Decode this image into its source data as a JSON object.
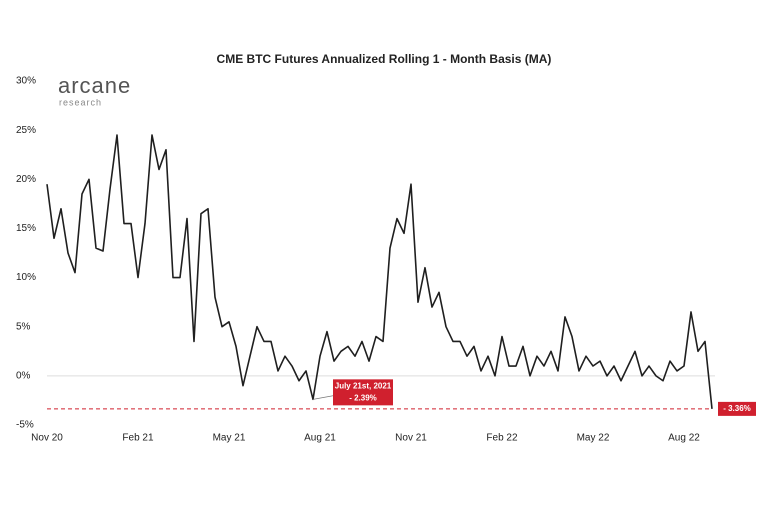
{
  "chart_data": {
    "type": "line",
    "title": "CME BTC Futures Annualized Rolling 1 - Month Basis (MA)",
    "logo": "arcane",
    "logo_subtitle": "research",
    "annotation": "July 21st, 2021",
    "categories": [
      "Nov 20",
      null,
      null,
      null,
      null,
      null,
      null,
      null,
      null,
      null,
      null,
      null,
      null,
      "Feb 21",
      null,
      null,
      null,
      null,
      null,
      null,
      null,
      null,
      null,
      null,
      null,
      null,
      "May 21",
      null,
      null,
      null,
      null,
      null,
      null,
      null,
      null,
      null,
      null,
      null,
      null,
      "Aug 21",
      null,
      null,
      null,
      null,
      null,
      null,
      null,
      null,
      null,
      null,
      null,
      null,
      "Nov 21",
      null,
      null,
      null,
      null,
      null,
      null,
      null,
      null,
      null,
      null,
      null,
      null,
      "Feb 22",
      null,
      null,
      null,
      null,
      null,
      null,
      null,
      null,
      null,
      null,
      null,
      null,
      "May 22",
      null,
      null,
      null,
      null,
      null,
      null,
      null,
      null,
      null,
      null,
      null,
      null,
      "Aug 22",
      null,
      null,
      null,
      null
    ],
    "series": [
      {
        "name": "Basis",
        "color": "#1f1f1f",
        "values": [
          19.5,
          14,
          17,
          12.5,
          10.5,
          18.5,
          20,
          13,
          12.7,
          19,
          24.5,
          15.5,
          15.5,
          10,
          15.5,
          24.5,
          21,
          23,
          10,
          10,
          16,
          3.5,
          16.5,
          17,
          8,
          5,
          5.5,
          3,
          -1,
          2,
          5,
          3.5,
          3.5,
          0.5,
          2,
          1,
          -0.5,
          0.5,
          -2.39,
          2,
          4.5,
          1.5,
          2.5,
          3,
          2,
          3.5,
          1.5,
          4,
          3.5,
          13,
          16,
          14.5,
          19.5,
          7.5,
          11,
          7,
          8.5,
          5,
          3.5,
          3.5,
          2,
          3,
          0.5,
          2,
          0,
          4,
          1,
          1,
          3,
          0,
          2,
          1,
          2.5,
          0.5,
          6,
          4,
          0.5,
          2,
          1,
          1.5,
          0,
          1,
          -0.5,
          1,
          2.5,
          0,
          1,
          0,
          -0.5,
          1.5,
          0.5,
          1,
          6.5,
          2.5,
          3.5,
          -3.36
        ],
        "value_labels": [
          null,
          null,
          null,
          null,
          null,
          null,
          null,
          null,
          null,
          null,
          null,
          null,
          null,
          null,
          null,
          null,
          null,
          null,
          null,
          null,
          null,
          null,
          null,
          null,
          null,
          null,
          null,
          null,
          null,
          null,
          null,
          null,
          null,
          null,
          null,
          null,
          null,
          null,
          "- 2.39%",
          null,
          null,
          null,
          null,
          null,
          null,
          null,
          null,
          null,
          null,
          null,
          null,
          null,
          null,
          null,
          null,
          null,
          null,
          null,
          null,
          null,
          null,
          null,
          null,
          null,
          null,
          null,
          null,
          null,
          null,
          null,
          null,
          null,
          null,
          null,
          null,
          null,
          null,
          null,
          null,
          null,
          null,
          null,
          null,
          null,
          null,
          null,
          null,
          null,
          null,
          null,
          null,
          null,
          null,
          null,
          null,
          "- 3.36%"
        ]
      }
    ],
    "annotation_color": "#d0202e",
    "ylim": [
      -5,
      30
    ],
    "yticks": [
      {
        "value": -5,
        "label": "-5%"
      },
      {
        "value": 0,
        "label": "0%"
      },
      {
        "value": 5,
        "label": "5%"
      },
      {
        "value": 10,
        "label": "10%"
      },
      {
        "value": 15,
        "label": "15%"
      },
      {
        "value": 20,
        "label": "20%"
      },
      {
        "value": 25,
        "label": "25%"
      },
      {
        "value": 30,
        "label": "30%"
      }
    ]
  }
}
